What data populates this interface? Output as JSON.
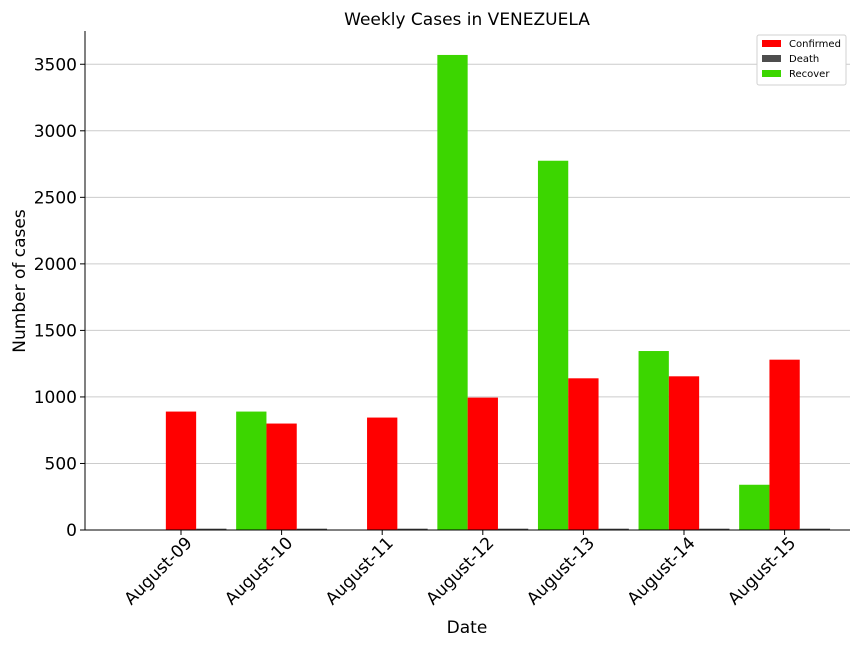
{
  "chart_data": {
    "type": "bar",
    "title": "Weekly Cases in VENEZUELA",
    "xlabel": "Date",
    "ylabel": "Number of cases",
    "ylim": [
      0,
      3750
    ],
    "yticks": [
      0,
      500,
      1000,
      1500,
      2000,
      2500,
      3000,
      3500
    ],
    "grid": true,
    "legend_position": "top-right",
    "categories": [
      "August-09",
      "August-10",
      "August-11",
      "August-12",
      "August-13",
      "August-14",
      "August-15"
    ],
    "series": [
      {
        "name": "Recover",
        "color": "#3cd600",
        "values": [
          0,
          890,
          0,
          3570,
          2775,
          1345,
          340
        ]
      },
      {
        "name": "Confirmed",
        "color": "#ff0000",
        "values": [
          890,
          800,
          845,
          995,
          1140,
          1155,
          1280
        ]
      },
      {
        "name": "Death",
        "color": "#4d4d4d",
        "values": [
          10,
          10,
          10,
          10,
          10,
          10,
          10
        ]
      }
    ],
    "legend": [
      {
        "name": "Confirmed",
        "color": "#ff0000"
      },
      {
        "name": "Death",
        "color": "#4d4d4d"
      },
      {
        "name": "Recover",
        "color": "#3cd600"
      }
    ]
  }
}
